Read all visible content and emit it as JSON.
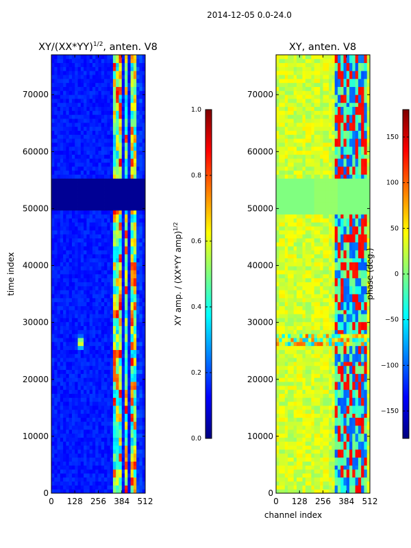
{
  "suptitle": "2014-12-05 0.0-24.0",
  "colors": {
    "jet": [
      "#00007f",
      "#0000ff",
      "#007fff",
      "#00ffff",
      "#7fff7f",
      "#ffff00",
      "#ff7f00",
      "#ff0000",
      "#7f0000"
    ]
  },
  "chart_data": [
    {
      "type": "heatmap",
      "title": "XY/(XX*YY)",
      "title_superscript": "1/2",
      "title_suffix": ", anten. V8",
      "xlabel": "",
      "ylabel": "time index",
      "x_ticks": [
        0,
        128,
        256,
        384,
        512
      ],
      "y_ticks": [
        0,
        10000,
        20000,
        30000,
        40000,
        50000,
        60000,
        70000
      ],
      "xlim": [
        0,
        512
      ],
      "ylim": [
        0,
        77000
      ],
      "colorbar": {
        "label": "XY amp. / (XX*YY amp)",
        "label_superscript": "1/2",
        "ticks": [
          "0.0",
          "0.2",
          "0.4",
          "0.6",
          "0.8",
          "1.0"
        ],
        "ticks_values": [
          0.0,
          0.2,
          0.4,
          0.6,
          0.8,
          1.0
        ],
        "range": [
          0.0,
          1.0
        ]
      }
    },
    {
      "type": "heatmap",
      "title": "XY, anten. V8",
      "xlabel": "channel index",
      "ylabel": "",
      "x_ticks": [
        0,
        128,
        256,
        384,
        512
      ],
      "y_ticks": [
        0,
        10000,
        20000,
        30000,
        40000,
        50000,
        60000,
        70000
      ],
      "xlim": [
        0,
        512
      ],
      "ylim": [
        0,
        77000
      ],
      "colorbar": {
        "label": "phase (deg.)",
        "ticks": [
          "150",
          "100",
          "50",
          "0",
          "−50",
          "−100",
          "−150"
        ],
        "ticks_values": [
          150,
          100,
          50,
          0,
          -50,
          -100,
          -150
        ],
        "range": [
          -180,
          180
        ]
      }
    }
  ]
}
